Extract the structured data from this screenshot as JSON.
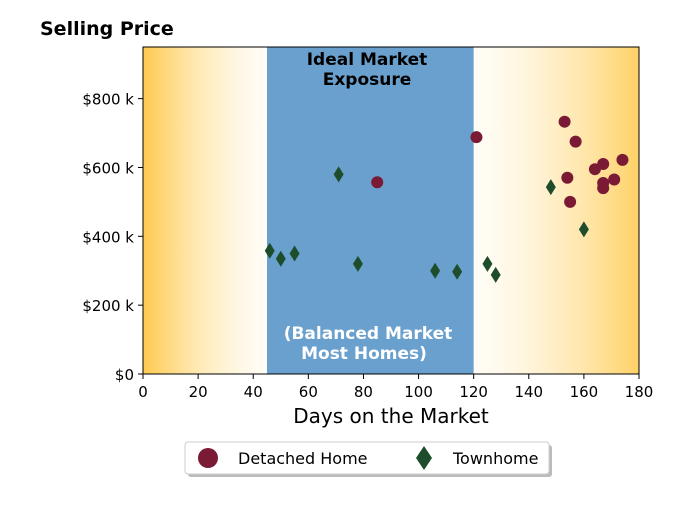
{
  "chart_data": {
    "type": "scatter",
    "title": "Selling Price",
    "xlabel": "Days on the Market",
    "ylabel": "",
    "xlim": [
      0,
      180
    ],
    "ylim": [
      0,
      950000
    ],
    "xticks": [
      0,
      20,
      40,
      60,
      80,
      100,
      120,
      140,
      160,
      180
    ],
    "xtick_labels": [
      "0",
      "20",
      "40",
      "60",
      "80",
      "100",
      "120",
      "140",
      "160",
      "180"
    ],
    "yticks": [
      0,
      200000,
      400000,
      600000,
      800000
    ],
    "ytick_labels": [
      "$0",
      "$200 k",
      "$400 k",
      "$600 k",
      "$800 k"
    ],
    "grid": false,
    "legend_position": "bottom-center",
    "colors": {
      "detached": "#7a1a35",
      "townhome": "#1e4d2b",
      "band": "#6aa0cd",
      "side_gradient": "#ffd166"
    },
    "band": {
      "x_start": 45,
      "x_end": 120
    },
    "annotations": {
      "top": [
        "Ideal Market",
        "Exposure"
      ],
      "bottom": [
        "(Balanced Market",
        "Most Homes)"
      ]
    },
    "series": [
      {
        "name": "Detached Home",
        "marker": "circle",
        "points": [
          [
            85,
            557000
          ],
          [
            121,
            688000
          ],
          [
            153,
            733000
          ],
          [
            154,
            570000
          ],
          [
            155,
            500000
          ],
          [
            157,
            675000
          ],
          [
            164,
            595000
          ],
          [
            167,
            610000
          ],
          [
            167,
            555000
          ],
          [
            167,
            540000
          ],
          [
            171,
            565000
          ],
          [
            174,
            622000
          ]
        ]
      },
      {
        "name": "Townhome",
        "marker": "diamond",
        "points": [
          [
            46,
            358000
          ],
          [
            50,
            335000
          ],
          [
            55,
            350000
          ],
          [
            71,
            580000
          ],
          [
            78,
            320000
          ],
          [
            106,
            300000
          ],
          [
            114,
            297000
          ],
          [
            125,
            320000
          ],
          [
            128,
            288000
          ],
          [
            148,
            543000
          ],
          [
            160,
            420000
          ]
        ]
      }
    ]
  }
}
